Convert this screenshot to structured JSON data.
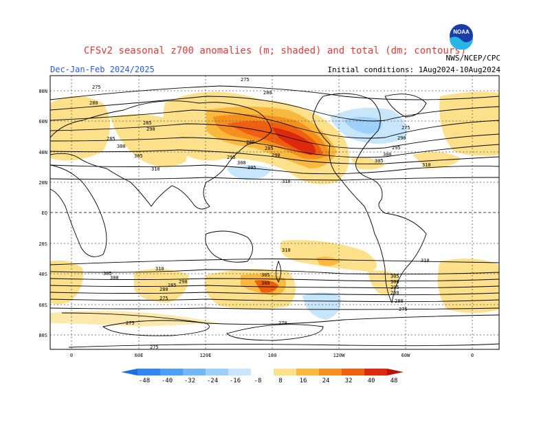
{
  "title": "CFSv2 seasonal z700 anomalies (m; shaded) and total (dm; contours)",
  "season": "Dec-Jan-Feb 2024/2025",
  "initial_conditions": "Initial conditions: 1Aug2024-10Aug2024",
  "agency": "NWS/NCEP/CPC",
  "logo_text": "NOAA",
  "lat_labels": [
    "80N",
    "60N",
    "40N",
    "20N",
    "EQ",
    "20S",
    "40S",
    "60S",
    "80S"
  ],
  "lon_labels": [
    "0",
    "60E",
    "120E",
    "180",
    "120W",
    "60W",
    "0"
  ],
  "colorbar": {
    "labels": [
      "-48",
      "-40",
      "-32",
      "-24",
      "-16",
      "-8",
      "8",
      "16",
      "24",
      "32",
      "40",
      "48"
    ],
    "colors": [
      "#1e6fe0",
      "#2f86f0",
      "#4da0f5",
      "#72b8f8",
      "#9fd0fb",
      "#c7e6fc",
      "#ffffff",
      "#fde08a",
      "#f9b93e",
      "#f5901f",
      "#ee5f12",
      "#dd2a0c",
      "#b8140a"
    ]
  },
  "contour_labels": [
    "275",
    "280",
    "285",
    "290",
    "295",
    "300",
    "305",
    "310",
    "270"
  ],
  "colors": {
    "land_outline": "#000000",
    "grid": "#555555",
    "title": "#e03a3a",
    "season": "#2a5adf"
  }
}
